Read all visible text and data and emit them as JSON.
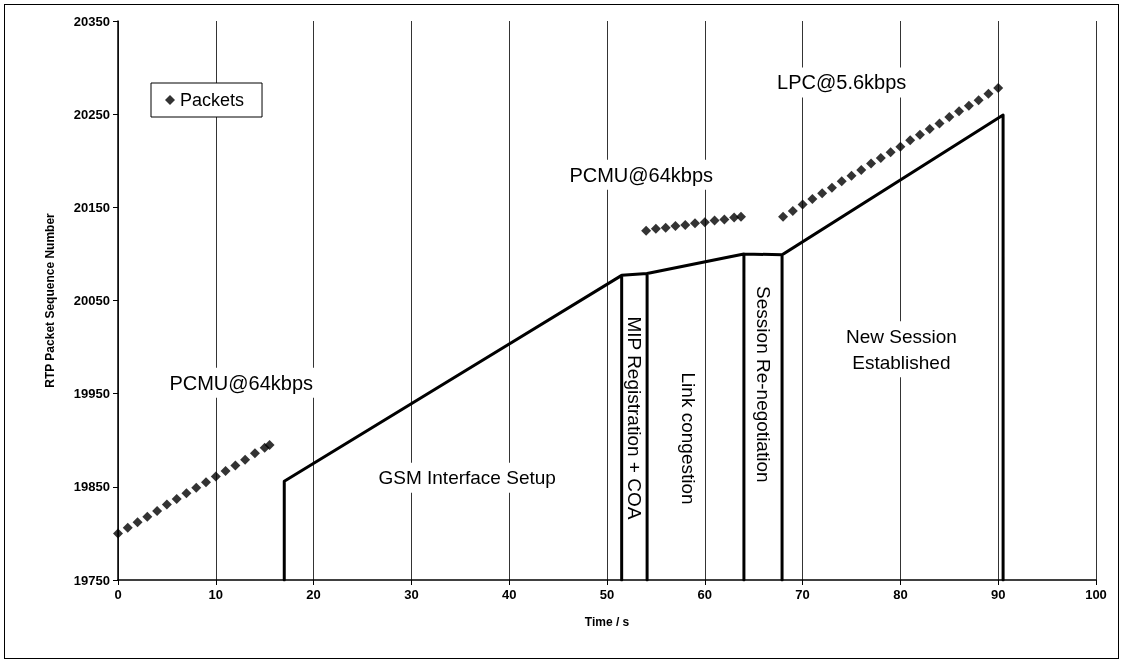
{
  "chart_data": {
    "type": "scatter",
    "xlabel": "Time / s",
    "ylabel": "RTP Packet Sequence Number",
    "xlim": [
      0,
      100
    ],
    "xticks": [
      0,
      10,
      20,
      30,
      40,
      50,
      60,
      70,
      80,
      90,
      100
    ],
    "ylim": [
      19750,
      20350
    ],
    "yticks": [
      19750,
      19850,
      19950,
      20050,
      20150,
      20250,
      20350
    ],
    "grid": "x",
    "legend": "top left",
    "marker": "diamond",
    "series": [
      {
        "name": "Packets",
        "color": "#000000",
        "x": [
          0,
          1,
          2,
          3,
          4,
          5,
          6,
          7,
          8,
          9,
          10,
          11,
          12,
          13,
          14,
          15,
          15.5,
          54,
          55,
          56,
          57,
          58,
          59,
          60,
          61,
          62,
          63,
          63.7,
          68,
          69,
          70,
          71,
          72,
          73,
          74,
          75,
          76,
          77,
          78,
          79,
          80,
          81,
          82,
          83,
          84,
          85,
          86,
          87,
          88,
          89,
          90
        ],
        "values": [
          19800,
          19806,
          19812,
          19818,
          19824,
          19831,
          19837,
          19843,
          19849,
          19855,
          19861,
          19867,
          19873,
          19879,
          19886,
          19892,
          19895,
          20125,
          20127,
          20128,
          20130,
          20131,
          20133,
          20134,
          20136,
          20137,
          20139,
          20140,
          20140,
          20146,
          20153,
          20159,
          20165,
          20171,
          20178,
          20184,
          20190,
          20197,
          20203,
          20209,
          20215,
          20222,
          20228,
          20234,
          20240,
          20247,
          20253,
          20259,
          20265,
          20272,
          20278
        ]
      },
      {
        "type": "line",
        "color": "#000000",
        "marker": "none",
        "line_style": "solid",
        "x": [
          17,
          17,
          51.5,
          51.5,
          51.5,
          54.1,
          54.1,
          54.1,
          64,
          64,
          64,
          67.9,
          67.9,
          67.9,
          90.5,
          90.5
        ],
        "values": [
          19750,
          19856,
          20077,
          19750,
          20077,
          20079,
          19750,
          20079,
          20100,
          19750,
          20100,
          20099,
          19750,
          20099,
          20249,
          19750
        ]
      }
    ],
    "annotations": [
      "PCMU@64kbps",
      "GSM Interface Setup",
      "MIP Registration + COA",
      "Link congestion",
      "Session Re-negotiation",
      "New Session\nEstablished",
      "PCMU@64kbps",
      "LPC@5.6kbps"
    ]
  }
}
